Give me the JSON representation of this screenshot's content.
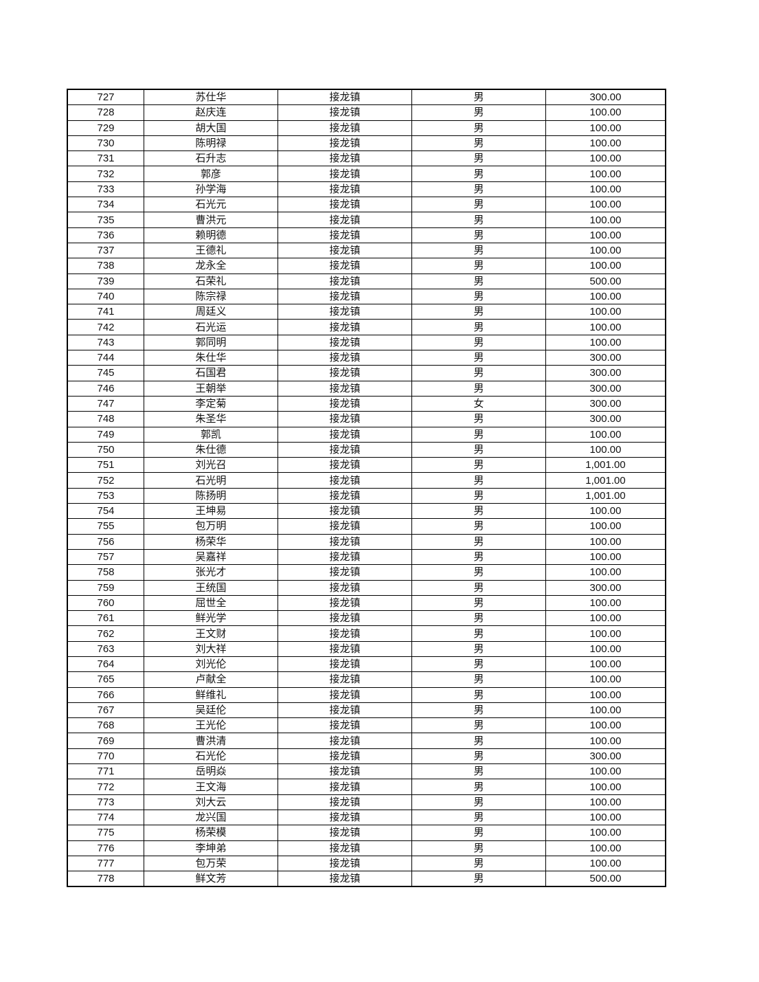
{
  "table": {
    "rows": [
      [
        "727",
        "苏仕华",
        "接龙镇",
        "男",
        "300.00"
      ],
      [
        "728",
        "赵庆连",
        "接龙镇",
        "男",
        "100.00"
      ],
      [
        "729",
        "胡大国",
        "接龙镇",
        "男",
        "100.00"
      ],
      [
        "730",
        "陈明禄",
        "接龙镇",
        "男",
        "100.00"
      ],
      [
        "731",
        "石升志",
        "接龙镇",
        "男",
        "100.00"
      ],
      [
        "732",
        "郭彦",
        "接龙镇",
        "男",
        "100.00"
      ],
      [
        "733",
        "孙学海",
        "接龙镇",
        "男",
        "100.00"
      ],
      [
        "734",
        "石光元",
        "接龙镇",
        "男",
        "100.00"
      ],
      [
        "735",
        "曹洪元",
        "接龙镇",
        "男",
        "100.00"
      ],
      [
        "736",
        "赖明德",
        "接龙镇",
        "男",
        "100.00"
      ],
      [
        "737",
        "王德礼",
        "接龙镇",
        "男",
        "100.00"
      ],
      [
        "738",
        "龙永全",
        "接龙镇",
        "男",
        "100.00"
      ],
      [
        "739",
        "石荣礼",
        "接龙镇",
        "男",
        "500.00"
      ],
      [
        "740",
        "陈宗禄",
        "接龙镇",
        "男",
        "100.00"
      ],
      [
        "741",
        "周廷义",
        "接龙镇",
        "男",
        "100.00"
      ],
      [
        "742",
        "石光运",
        "接龙镇",
        "男",
        "100.00"
      ],
      [
        "743",
        "郭同明",
        "接龙镇",
        "男",
        "100.00"
      ],
      [
        "744",
        "朱仕华",
        "接龙镇",
        "男",
        "300.00"
      ],
      [
        "745",
        "石国君",
        "接龙镇",
        "男",
        "300.00"
      ],
      [
        "746",
        "王朝举",
        "接龙镇",
        "男",
        "300.00"
      ],
      [
        "747",
        "李定菊",
        "接龙镇",
        "女",
        "300.00"
      ],
      [
        "748",
        "朱圣华",
        "接龙镇",
        "男",
        "300.00"
      ],
      [
        "749",
        "郭凯",
        "接龙镇",
        "男",
        "100.00"
      ],
      [
        "750",
        "朱仕德",
        "接龙镇",
        "男",
        "100.00"
      ],
      [
        "751",
        "刘光召",
        "接龙镇",
        "男",
        "1,001.00"
      ],
      [
        "752",
        "石光明",
        "接龙镇",
        "男",
        "1,001.00"
      ],
      [
        "753",
        "陈扬明",
        "接龙镇",
        "男",
        "1,001.00"
      ],
      [
        "754",
        "王坤易",
        "接龙镇",
        "男",
        "100.00"
      ],
      [
        "755",
        "包万明",
        "接龙镇",
        "男",
        "100.00"
      ],
      [
        "756",
        "杨荣华",
        "接龙镇",
        "男",
        "100.00"
      ],
      [
        "757",
        "吴嘉祥",
        "接龙镇",
        "男",
        "100.00"
      ],
      [
        "758",
        "张光才",
        "接龙镇",
        "男",
        "100.00"
      ],
      [
        "759",
        "王统国",
        "接龙镇",
        "男",
        "300.00"
      ],
      [
        "760",
        "屈世全",
        "接龙镇",
        "男",
        "100.00"
      ],
      [
        "761",
        "鲜光学",
        "接龙镇",
        "男",
        "100.00"
      ],
      [
        "762",
        "王文财",
        "接龙镇",
        "男",
        "100.00"
      ],
      [
        "763",
        "刘大祥",
        "接龙镇",
        "男",
        "100.00"
      ],
      [
        "764",
        "刘光伦",
        "接龙镇",
        "男",
        "100.00"
      ],
      [
        "765",
        "卢献全",
        "接龙镇",
        "男",
        "100.00"
      ],
      [
        "766",
        "鲜维礼",
        "接龙镇",
        "男",
        "100.00"
      ],
      [
        "767",
        "吴廷伦",
        "接龙镇",
        "男",
        "100.00"
      ],
      [
        "768",
        "王光伦",
        "接龙镇",
        "男",
        "100.00"
      ],
      [
        "769",
        "曹洪清",
        "接龙镇",
        "男",
        "100.00"
      ],
      [
        "770",
        "石光伦",
        "接龙镇",
        "男",
        "300.00"
      ],
      [
        "771",
        "岳明焱",
        "接龙镇",
        "男",
        "100.00"
      ],
      [
        "772",
        "王文海",
        "接龙镇",
        "男",
        "100.00"
      ],
      [
        "773",
        "刘大云",
        "接龙镇",
        "男",
        "100.00"
      ],
      [
        "774",
        "龙兴国",
        "接龙镇",
        "男",
        "100.00"
      ],
      [
        "775",
        "杨荣模",
        "接龙镇",
        "男",
        "100.00"
      ],
      [
        "776",
        "李坤弟",
        "接龙镇",
        "男",
        "100.00"
      ],
      [
        "777",
        "包万荣",
        "接龙镇",
        "男",
        "100.00"
      ],
      [
        "778",
        "鲜文芳",
        "接龙镇",
        "男",
        "500.00"
      ]
    ]
  }
}
